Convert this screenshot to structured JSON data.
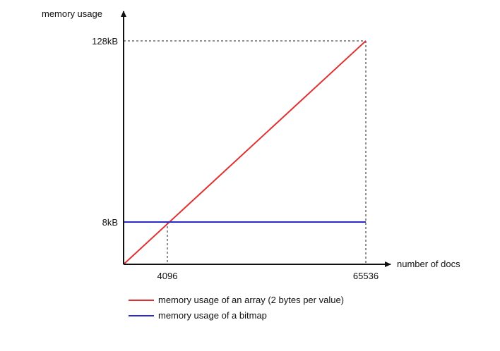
{
  "chart_data": {
    "type": "line",
    "xlabel": "number of docs",
    "ylabel": "memory usage",
    "x_ticks": [
      {
        "value": 4096,
        "label": "4096"
      },
      {
        "value": 65536,
        "label": "65536"
      }
    ],
    "y_ticks": [
      {
        "value": 8,
        "label": "8kB"
      },
      {
        "value": 128,
        "label": "128kB"
      }
    ],
    "xlim": [
      0,
      65536
    ],
    "ylim": [
      0,
      128
    ],
    "y_unit": "kB",
    "grid": false,
    "legend_position": "bottom",
    "series": [
      {
        "name": "memory usage of an array (2 bytes per value)",
        "color": "#e03030",
        "points": [
          {
            "x": 0,
            "y": 0
          },
          {
            "x": 65536,
            "y": 128
          }
        ]
      },
      {
        "name": "memory usage of a bitmap",
        "color": "#2a2ad0",
        "points": [
          {
            "x": 0,
            "y": 8
          },
          {
            "x": 65536,
            "y": 8
          }
        ]
      }
    ]
  }
}
